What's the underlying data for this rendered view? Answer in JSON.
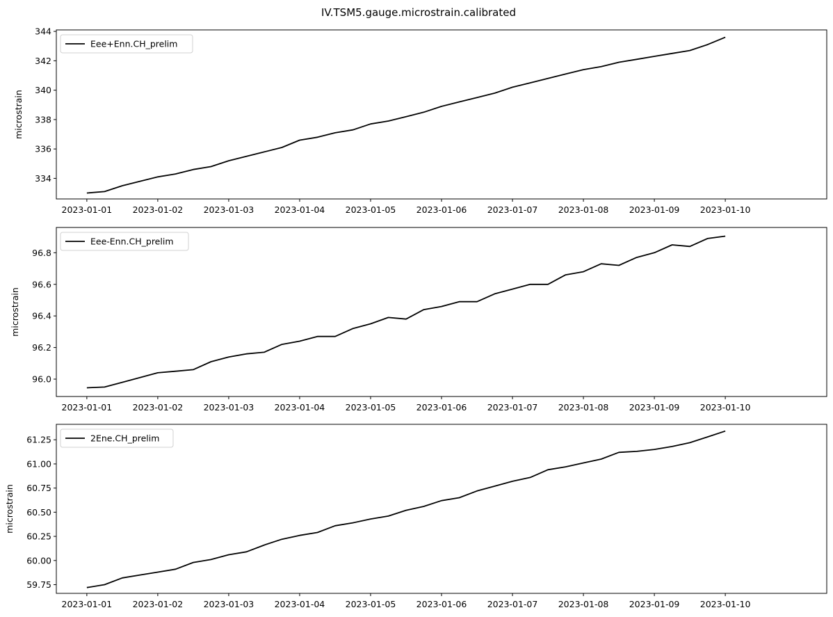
{
  "figure": {
    "title": "IV.TSM5.gauge.microstrain.calibrated"
  },
  "chart_data": [
    {
      "type": "line",
      "ylabel": "microstrain",
      "ylim": [
        332.6,
        344.1
      ],
      "yticks": [
        334,
        336,
        338,
        340,
        342,
        344
      ],
      "ytick_decimals": 0,
      "xlim": [
        -0.43,
        10.43
      ],
      "xticks": [
        "2023-01-01",
        "2023-01-02",
        "2023-01-03",
        "2023-01-04",
        "2023-01-05",
        "2023-01-06",
        "2023-01-07",
        "2023-01-08",
        "2023-01-09",
        "2023-01-10"
      ],
      "legend_position": "upper-left",
      "line_color": "#000000",
      "series": [
        {
          "name": "Eee+Enn.CH_prelim",
          "x": [
            "2023-01-01T00:00",
            "2023-01-01T06:00",
            "2023-01-01T12:00",
            "2023-01-01T18:00",
            "2023-01-02T00:00",
            "2023-01-02T06:00",
            "2023-01-02T12:00",
            "2023-01-02T18:00",
            "2023-01-03T00:00",
            "2023-01-03T06:00",
            "2023-01-03T12:00",
            "2023-01-03T18:00",
            "2023-01-04T00:00",
            "2023-01-04T06:00",
            "2023-01-04T12:00",
            "2023-01-04T18:00",
            "2023-01-05T00:00",
            "2023-01-05T06:00",
            "2023-01-05T12:00",
            "2023-01-05T18:00",
            "2023-01-06T00:00",
            "2023-01-06T06:00",
            "2023-01-06T12:00",
            "2023-01-06T18:00",
            "2023-01-07T00:00",
            "2023-01-07T06:00",
            "2023-01-07T12:00",
            "2023-01-07T18:00",
            "2023-01-08T00:00",
            "2023-01-08T06:00",
            "2023-01-08T12:00",
            "2023-01-08T18:00",
            "2023-01-09T00:00",
            "2023-01-09T06:00",
            "2023-01-09T12:00",
            "2023-01-09T18:00",
            "2023-01-10T00:00"
          ],
          "values": [
            333.0,
            333.1,
            333.5,
            333.8,
            334.1,
            334.3,
            334.6,
            334.8,
            335.2,
            335.5,
            335.8,
            336.1,
            336.6,
            336.8,
            337.1,
            337.3,
            337.7,
            337.9,
            338.2,
            338.5,
            338.9,
            339.2,
            339.5,
            339.8,
            340.2,
            340.5,
            340.8,
            341.1,
            341.4,
            341.6,
            341.9,
            342.1,
            342.3,
            342.5,
            342.7,
            343.1,
            343.6
          ]
        }
      ]
    },
    {
      "type": "line",
      "ylabel": "microstrain",
      "ylim": [
        95.89,
        96.96
      ],
      "yticks": [
        96.0,
        96.2,
        96.4,
        96.6,
        96.8
      ],
      "ytick_decimals": 1,
      "xlim": [
        -0.43,
        10.43
      ],
      "xticks": [
        "2023-01-01",
        "2023-01-02",
        "2023-01-03",
        "2023-01-04",
        "2023-01-05",
        "2023-01-06",
        "2023-01-07",
        "2023-01-08",
        "2023-01-09",
        "2023-01-10"
      ],
      "legend_position": "upper-left",
      "line_color": "#000000",
      "series": [
        {
          "name": "Eee-Enn.CH_prelim",
          "x": [
            "2023-01-01T00:00",
            "2023-01-01T06:00",
            "2023-01-01T12:00",
            "2023-01-01T18:00",
            "2023-01-02T00:00",
            "2023-01-02T06:00",
            "2023-01-02T12:00",
            "2023-01-02T18:00",
            "2023-01-03T00:00",
            "2023-01-03T06:00",
            "2023-01-03T12:00",
            "2023-01-03T18:00",
            "2023-01-04T00:00",
            "2023-01-04T06:00",
            "2023-01-04T12:00",
            "2023-01-04T18:00",
            "2023-01-05T00:00",
            "2023-01-05T06:00",
            "2023-01-05T12:00",
            "2023-01-05T18:00",
            "2023-01-06T00:00",
            "2023-01-06T06:00",
            "2023-01-06T12:00",
            "2023-01-06T18:00",
            "2023-01-07T00:00",
            "2023-01-07T06:00",
            "2023-01-07T12:00",
            "2023-01-07T18:00",
            "2023-01-08T00:00",
            "2023-01-08T06:00",
            "2023-01-08T12:00",
            "2023-01-08T18:00",
            "2023-01-09T00:00",
            "2023-01-09T06:00",
            "2023-01-09T12:00",
            "2023-01-09T18:00",
            "2023-01-10T00:00"
          ],
          "values": [
            95.945,
            95.95,
            95.98,
            96.01,
            96.04,
            96.05,
            96.06,
            96.11,
            96.14,
            96.16,
            96.17,
            96.22,
            96.24,
            96.27,
            96.27,
            96.32,
            96.35,
            96.39,
            96.38,
            96.44,
            96.46,
            96.49,
            96.49,
            96.54,
            96.57,
            96.6,
            96.6,
            96.66,
            96.68,
            96.73,
            96.72,
            96.77,
            96.8,
            96.85,
            96.84,
            96.89,
            96.905
          ]
        }
      ]
    },
    {
      "type": "line",
      "ylabel": "microstrain",
      "ylim": [
        59.66,
        61.41
      ],
      "yticks": [
        59.75,
        60.0,
        60.25,
        60.5,
        60.75,
        61.0,
        61.25
      ],
      "ytick_decimals": 2,
      "xlim": [
        -0.43,
        10.43
      ],
      "xticks": [
        "2023-01-01",
        "2023-01-02",
        "2023-01-03",
        "2023-01-04",
        "2023-01-05",
        "2023-01-06",
        "2023-01-07",
        "2023-01-08",
        "2023-01-09",
        "2023-01-10"
      ],
      "legend_position": "upper-left",
      "line_color": "#000000",
      "series": [
        {
          "name": "2Ene.CH_prelim",
          "x": [
            "2023-01-01T00:00",
            "2023-01-01T06:00",
            "2023-01-01T12:00",
            "2023-01-01T18:00",
            "2023-01-02T00:00",
            "2023-01-02T06:00",
            "2023-01-02T12:00",
            "2023-01-02T18:00",
            "2023-01-03T00:00",
            "2023-01-03T06:00",
            "2023-01-03T12:00",
            "2023-01-03T18:00",
            "2023-01-04T00:00",
            "2023-01-04T06:00",
            "2023-01-04T12:00",
            "2023-01-04T18:00",
            "2023-01-05T00:00",
            "2023-01-05T06:00",
            "2023-01-05T12:00",
            "2023-01-05T18:00",
            "2023-01-06T00:00",
            "2023-01-06T06:00",
            "2023-01-06T12:00",
            "2023-01-06T18:00",
            "2023-01-07T00:00",
            "2023-01-07T06:00",
            "2023-01-07T12:00",
            "2023-01-07T18:00",
            "2023-01-08T00:00",
            "2023-01-08T06:00",
            "2023-01-08T12:00",
            "2023-01-08T18:00",
            "2023-01-09T00:00",
            "2023-01-09T06:00",
            "2023-01-09T12:00",
            "2023-01-09T18:00",
            "2023-01-10T00:00"
          ],
          "values": [
            59.72,
            59.75,
            59.82,
            59.85,
            59.88,
            59.91,
            59.98,
            60.01,
            60.06,
            60.09,
            60.16,
            60.22,
            60.26,
            60.29,
            60.36,
            60.39,
            60.43,
            60.46,
            60.52,
            60.56,
            60.62,
            60.65,
            60.72,
            60.77,
            60.82,
            60.86,
            60.94,
            60.97,
            61.01,
            61.05,
            61.12,
            61.13,
            61.15,
            61.18,
            61.22,
            61.28,
            61.34
          ]
        }
      ]
    }
  ]
}
